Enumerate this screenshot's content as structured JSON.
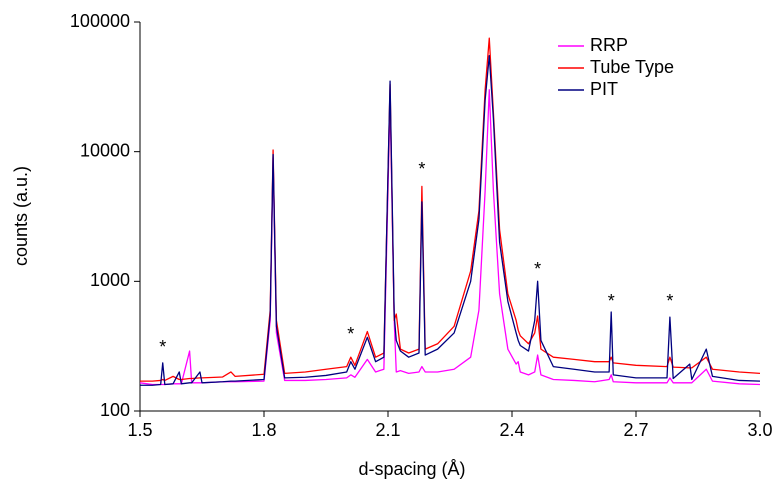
{
  "chart_data": {
    "type": "line",
    "xlabel": "d-spacing (Å)",
    "ylabel": "counts (a.u.)",
    "yscale": "log",
    "legend": "upper right",
    "xlim": [
      1.5,
      3
    ],
    "xticks": [
      1.5,
      1.8,
      2.1,
      2.4,
      2.7,
      {
        "value": 3,
        "label": "3.0"
      }
    ],
    "ylim": [
      100,
      100000
    ],
    "yticks": [
      100,
      1000,
      10000,
      100000
    ],
    "x": [
      1.5,
      1.53,
      1.55,
      1.555,
      1.56,
      1.58,
      1.595,
      1.6,
      1.62,
      1.625,
      1.645,
      1.65,
      1.7,
      1.72,
      1.73,
      1.8,
      1.815,
      1.822,
      1.83,
      1.85,
      1.9,
      1.95,
      2.0,
      2.01,
      2.02,
      2.05,
      2.07,
      2.09,
      2.105,
      2.115,
      2.12,
      2.13,
      2.15,
      2.175,
      2.182,
      2.19,
      2.22,
      2.26,
      2.3,
      2.32,
      2.335,
      2.345,
      2.355,
      2.37,
      2.39,
      2.41,
      2.415,
      2.42,
      2.44,
      2.455,
      2.462,
      2.47,
      2.5,
      2.55,
      2.6,
      2.635,
      2.64,
      2.645,
      2.7,
      2.775,
      2.782,
      2.79,
      2.83,
      2.835,
      2.87,
      2.885,
      2.95,
      3.0
    ],
    "series": [
      {
        "name": "RRP",
        "color": "#ff00ff",
        "values": [
          165,
          160,
          160,
          160,
          160,
          162,
          162,
          162,
          290,
          165,
          165,
          165,
          168,
          168,
          168,
          170,
          500,
          9000,
          400,
          172,
          172,
          175,
          180,
          190,
          182,
          250,
          200,
          210,
          25000,
          500,
          200,
          205,
          195,
          200,
          220,
          200,
          200,
          210,
          260,
          600,
          5000,
          30000,
          5000,
          800,
          300,
          230,
          240,
          200,
          190,
          200,
          270,
          190,
          175,
          172,
          168,
          175,
          190,
          168,
          165,
          165,
          180,
          165,
          165,
          165,
          210,
          170,
          162,
          160
        ]
      },
      {
        "name": "Tube Type",
        "color": "#ff0000",
        "values": [
          170,
          170,
          172,
          175,
          172,
          185,
          175,
          175,
          178,
          178,
          180,
          180,
          183,
          200,
          185,
          192,
          600,
          10300,
          500,
          195,
          200,
          210,
          220,
          260,
          225,
          410,
          260,
          280,
          33000,
          500,
          560,
          300,
          280,
          300,
          5400,
          300,
          330,
          450,
          1200,
          3500,
          30000,
          75000,
          20000,
          2500,
          800,
          500,
          420,
          380,
          330,
          400,
          540,
          300,
          260,
          250,
          240,
          240,
          260,
          235,
          225,
          220,
          260,
          218,
          215,
          215,
          260,
          210,
          200,
          195
        ]
      },
      {
        "name": "PIT",
        "color": "#000080",
        "values": [
          158,
          158,
          160,
          235,
          160,
          162,
          200,
          162,
          165,
          165,
          200,
          165,
          168,
          170,
          170,
          175,
          550,
          9500,
          450,
          180,
          182,
          188,
          200,
          240,
          210,
          370,
          240,
          260,
          35000,
          550,
          350,
          290,
          260,
          280,
          4100,
          270,
          300,
          400,
          1000,
          3000,
          25000,
          55000,
          18000,
          2000,
          700,
          400,
          350,
          320,
          290,
          500,
          1000,
          350,
          220,
          210,
          200,
          200,
          580,
          190,
          180,
          180,
          530,
          178,
          230,
          175,
          300,
          185,
          172,
          170
        ]
      }
    ],
    "annotations": [
      {
        "text": "*",
        "x": 1.555,
        "y": 306
      },
      {
        "text": "*",
        "x": 2.01,
        "y": 385
      },
      {
        "text": "*",
        "x": 2.182,
        "y": 7200
      },
      {
        "text": "*",
        "x": 2.462,
        "y": 1220
      },
      {
        "text": "*",
        "x": 2.64,
        "y": 690
      },
      {
        "text": "*",
        "x": 2.782,
        "y": 690
      }
    ]
  }
}
